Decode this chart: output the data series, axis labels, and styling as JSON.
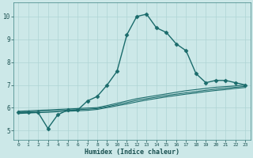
{
  "xlabel": "Humidex (Indice chaleur)",
  "background_color": "#cce8e8",
  "line_color": "#1a6b6b",
  "grid_color": "#aed4d4",
  "x_ticks": [
    0,
    1,
    2,
    3,
    4,
    5,
    6,
    7,
    8,
    9,
    10,
    11,
    12,
    13,
    14,
    15,
    16,
    17,
    18,
    19,
    20,
    21,
    22,
    23
  ],
  "y_ticks": [
    5,
    6,
    7,
    8,
    9,
    10
  ],
  "xlim": [
    -0.5,
    23.5
  ],
  "ylim": [
    4.6,
    10.6
  ],
  "series": [
    {
      "x": [
        0,
        1,
        2,
        3,
        4,
        5,
        6,
        7,
        8,
        9,
        10,
        11,
        12,
        13,
        14,
        15,
        16,
        17,
        18,
        19,
        20,
        21,
        22,
        23
      ],
      "y": [
        5.8,
        5.8,
        5.8,
        5.1,
        5.7,
        5.9,
        5.9,
        6.3,
        6.5,
        7.0,
        7.6,
        9.2,
        10.0,
        10.1,
        9.5,
        9.3,
        8.8,
        8.5,
        7.5,
        7.1,
        7.2,
        7.2,
        7.1,
        7.0
      ],
      "marker": "D",
      "markersize": 2.5,
      "linewidth": 1.0
    },
    {
      "x": [
        0,
        1,
        2,
        3,
        4,
        5,
        6,
        7,
        8,
        9,
        10,
        11,
        12,
        13,
        14,
        15,
        16,
        17,
        18,
        19,
        20,
        21,
        22,
        23
      ],
      "y": [
        5.85,
        5.87,
        5.89,
        5.91,
        5.93,
        5.95,
        5.97,
        5.99,
        6.01,
        6.1,
        6.2,
        6.3,
        6.4,
        6.47,
        6.54,
        6.61,
        6.68,
        6.75,
        6.8,
        6.85,
        6.9,
        6.93,
        6.96,
        7.0
      ],
      "marker": null,
      "markersize": 0,
      "linewidth": 0.8
    },
    {
      "x": [
        0,
        1,
        2,
        3,
        4,
        5,
        6,
        7,
        8,
        9,
        10,
        11,
        12,
        13,
        14,
        15,
        16,
        17,
        18,
        19,
        20,
        21,
        22,
        23
      ],
      "y": [
        5.8,
        5.82,
        5.84,
        5.86,
        5.88,
        5.9,
        5.92,
        5.94,
        5.97,
        6.05,
        6.14,
        6.23,
        6.33,
        6.4,
        6.47,
        6.54,
        6.6,
        6.66,
        6.71,
        6.77,
        6.82,
        6.86,
        6.9,
        6.94
      ],
      "marker": null,
      "markersize": 0,
      "linewidth": 0.8
    },
    {
      "x": [
        0,
        1,
        2,
        3,
        4,
        5,
        6,
        7,
        8,
        9,
        10,
        11,
        12,
        13,
        14,
        15,
        16,
        17,
        18,
        19,
        20,
        21,
        22,
        23
      ],
      "y": [
        5.75,
        5.77,
        5.79,
        5.8,
        5.83,
        5.85,
        5.87,
        5.89,
        5.93,
        6.01,
        6.09,
        6.17,
        6.26,
        6.34,
        6.41,
        6.48,
        6.54,
        6.6,
        6.65,
        6.71,
        6.76,
        6.8,
        6.85,
        6.89
      ],
      "marker": null,
      "markersize": 0,
      "linewidth": 0.8
    }
  ]
}
